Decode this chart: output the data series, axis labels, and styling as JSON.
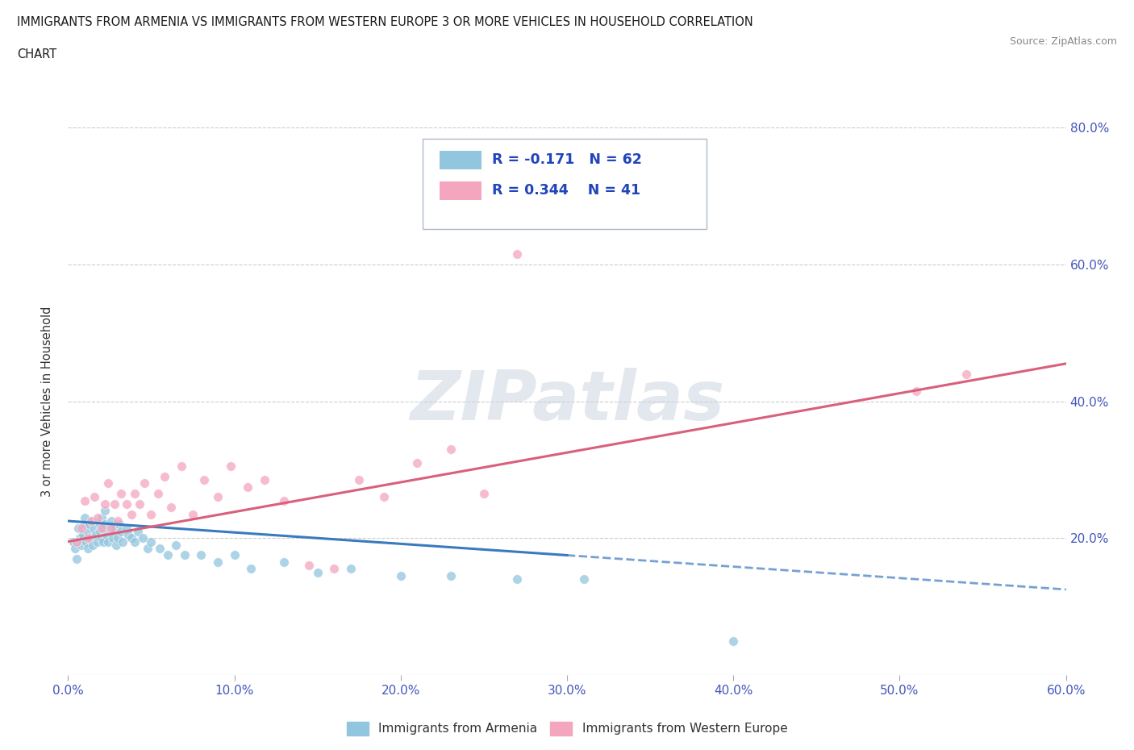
{
  "title_line1": "IMMIGRANTS FROM ARMENIA VS IMMIGRANTS FROM WESTERN EUROPE 3 OR MORE VEHICLES IN HOUSEHOLD CORRELATION",
  "title_line2": "CHART",
  "source": "Source: ZipAtlas.com",
  "ylabel": "3 or more Vehicles in Household",
  "xmin": 0.0,
  "xmax": 0.6,
  "ymin": 0.0,
  "ymax": 0.8,
  "xtick_labels": [
    "0.0%",
    "",
    "",
    "",
    "",
    "",
    "",
    "",
    "",
    "",
    "10.0%",
    "",
    "",
    "",
    "",
    "",
    "",
    "",
    "",
    "",
    "20.0%",
    "",
    "",
    "",
    "",
    "",
    "",
    "",
    "",
    "",
    "30.0%",
    "",
    "",
    "",
    "",
    "",
    "",
    "",
    "",
    "",
    "40.0%",
    "",
    "",
    "",
    "",
    "",
    "",
    "",
    "",
    "",
    "50.0%",
    "",
    "",
    "",
    "",
    "",
    "",
    "",
    "",
    "",
    "60.0%"
  ],
  "xtick_values": [
    0.0,
    0.1,
    0.2,
    0.3,
    0.4,
    0.5,
    0.6
  ],
  "ytick_labels_right": [
    "20.0%",
    "40.0%",
    "60.0%",
    "80.0%"
  ],
  "ytick_values": [
    0.2,
    0.4,
    0.6,
    0.8
  ],
  "color_armenia": "#92c5de",
  "color_western": "#f4a6be",
  "trendline_armenia_solid": "#3a7abf",
  "trendline_western_solid": "#d9607a",
  "R_armenia": -0.171,
  "N_armenia": 62,
  "R_western": 0.344,
  "N_western": 41,
  "legend_label_armenia": "Immigrants from Armenia",
  "legend_label_western": "Immigrants from Western Europe",
  "armenia_x": [
    0.003,
    0.004,
    0.005,
    0.006,
    0.007,
    0.008,
    0.009,
    0.01,
    0.01,
    0.011,
    0.012,
    0.012,
    0.013,
    0.014,
    0.015,
    0.015,
    0.016,
    0.017,
    0.018,
    0.019,
    0.019,
    0.02,
    0.02,
    0.021,
    0.021,
    0.022,
    0.022,
    0.023,
    0.024,
    0.025,
    0.026,
    0.027,
    0.028,
    0.029,
    0.03,
    0.031,
    0.032,
    0.033,
    0.035,
    0.036,
    0.038,
    0.04,
    0.042,
    0.045,
    0.048,
    0.05,
    0.055,
    0.06,
    0.065,
    0.07,
    0.08,
    0.09,
    0.1,
    0.11,
    0.13,
    0.15,
    0.17,
    0.2,
    0.23,
    0.27,
    0.31,
    0.4
  ],
  "armenia_y": [
    0.195,
    0.185,
    0.17,
    0.215,
    0.2,
    0.19,
    0.205,
    0.22,
    0.23,
    0.195,
    0.21,
    0.185,
    0.22,
    0.2,
    0.225,
    0.19,
    0.215,
    0.205,
    0.195,
    0.22,
    0.21,
    0.2,
    0.23,
    0.215,
    0.195,
    0.22,
    0.24,
    0.205,
    0.195,
    0.215,
    0.225,
    0.2,
    0.215,
    0.19,
    0.2,
    0.22,
    0.21,
    0.195,
    0.215,
    0.205,
    0.2,
    0.195,
    0.21,
    0.2,
    0.185,
    0.195,
    0.185,
    0.175,
    0.19,
    0.175,
    0.175,
    0.165,
    0.175,
    0.155,
    0.165,
    0.15,
    0.155,
    0.145,
    0.145,
    0.14,
    0.14,
    0.05
  ],
  "western_x": [
    0.005,
    0.008,
    0.01,
    0.012,
    0.014,
    0.016,
    0.018,
    0.02,
    0.022,
    0.024,
    0.026,
    0.028,
    0.03,
    0.032,
    0.035,
    0.038,
    0.04,
    0.043,
    0.046,
    0.05,
    0.054,
    0.058,
    0.062,
    0.068,
    0.075,
    0.082,
    0.09,
    0.098,
    0.108,
    0.118,
    0.13,
    0.145,
    0.16,
    0.175,
    0.19,
    0.21,
    0.23,
    0.25,
    0.27,
    0.51,
    0.54
  ],
  "western_y": [
    0.195,
    0.215,
    0.255,
    0.2,
    0.225,
    0.26,
    0.23,
    0.215,
    0.25,
    0.28,
    0.215,
    0.25,
    0.225,
    0.265,
    0.25,
    0.235,
    0.265,
    0.25,
    0.28,
    0.235,
    0.265,
    0.29,
    0.245,
    0.305,
    0.235,
    0.285,
    0.26,
    0.305,
    0.275,
    0.285,
    0.255,
    0.16,
    0.155,
    0.285,
    0.26,
    0.31,
    0.33,
    0.265,
    0.615,
    0.415,
    0.44
  ],
  "arm_trend_x0": 0.0,
  "arm_trend_x_solid_end": 0.3,
  "arm_trend_x1": 0.6,
  "arm_trend_y0": 0.225,
  "arm_trend_y_solid_end": 0.175,
  "arm_trend_y1": 0.125,
  "wes_trend_x0": 0.0,
  "wes_trend_x1": 0.6,
  "wes_trend_y0": 0.195,
  "wes_trend_y1": 0.455
}
